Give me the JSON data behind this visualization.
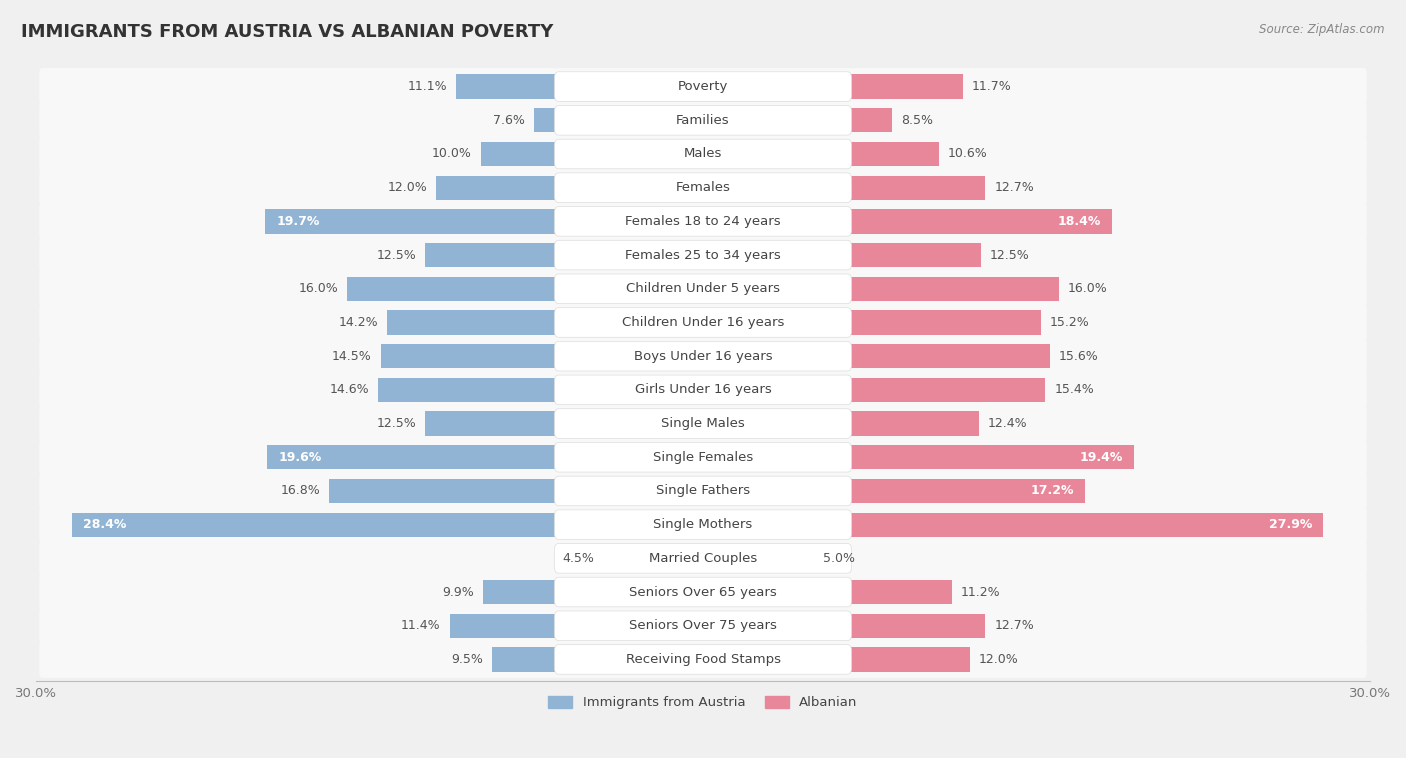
{
  "title": "IMMIGRANTS FROM AUSTRIA VS ALBANIAN POVERTY",
  "source": "Source: ZipAtlas.com",
  "categories": [
    "Poverty",
    "Families",
    "Males",
    "Females",
    "Females 18 to 24 years",
    "Females 25 to 34 years",
    "Children Under 5 years",
    "Children Under 16 years",
    "Boys Under 16 years",
    "Girls Under 16 years",
    "Single Males",
    "Single Females",
    "Single Fathers",
    "Single Mothers",
    "Married Couples",
    "Seniors Over 65 years",
    "Seniors Over 75 years",
    "Receiving Food Stamps"
  ],
  "left_values": [
    11.1,
    7.6,
    10.0,
    12.0,
    19.7,
    12.5,
    16.0,
    14.2,
    14.5,
    14.6,
    12.5,
    19.6,
    16.8,
    28.4,
    4.5,
    9.9,
    11.4,
    9.5
  ],
  "right_values": [
    11.7,
    8.5,
    10.6,
    12.7,
    18.4,
    12.5,
    16.0,
    15.2,
    15.6,
    15.4,
    12.4,
    19.4,
    17.2,
    27.9,
    5.0,
    11.2,
    12.7,
    12.0
  ],
  "left_color": "#92b4d4",
  "right_color": "#e8869a",
  "left_label": "Immigrants from Austria",
  "right_label": "Albanian",
  "xlim": 30.0,
  "background_color": "#f0f0f0",
  "row_bg_color": "#e8e8e8",
  "bar_bg_color": "#f8f8f8",
  "title_fontsize": 13,
  "label_fontsize": 9.5,
  "value_fontsize": 9.0,
  "inside_value_threshold": 17.0
}
